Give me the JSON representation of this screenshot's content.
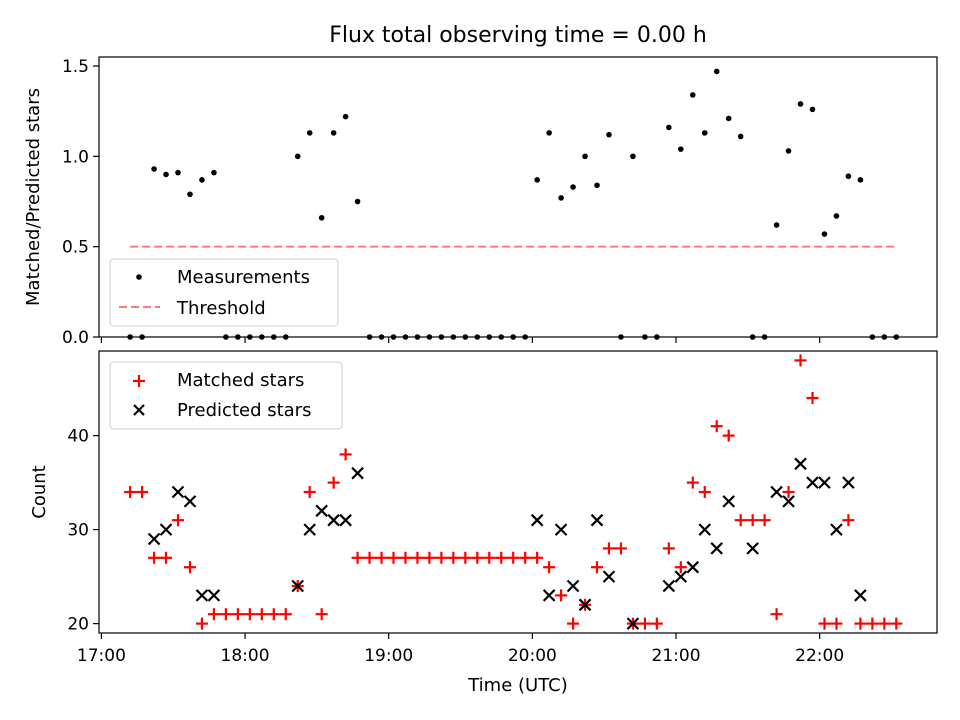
{
  "figure": {
    "title": "Flux total observing time = 0.00 h"
  },
  "chart_data": [
    {
      "type": "scatter",
      "panel": "top",
      "title": "Flux total observing time = 0.00 h",
      "ylabel": "Matched/Predicted stars",
      "xlim": [
        "16:59",
        "22:49"
      ],
      "ylim": [
        0,
        1.55
      ],
      "yticks": [
        0.0,
        0.5,
        1.0,
        1.5
      ],
      "ytick_labels": [
        "0.0",
        "0.5",
        "1.0",
        "1.5"
      ],
      "grid": false,
      "legend": "lower-left",
      "series": [
        {
          "name": "Measurements",
          "marker": "dot",
          "color": "#000000",
          "x": [
            "17:12",
            "17:17",
            "17:22",
            "17:27",
            "17:32",
            "17:37",
            "17:42",
            "17:47",
            "17:52",
            "17:57",
            "18:02",
            "18:07",
            "18:12",
            "18:17",
            "18:22",
            "18:27",
            "18:32",
            "18:37",
            "18:42",
            "18:47",
            "18:52",
            "18:57",
            "19:02",
            "19:07",
            "19:12",
            "19:17",
            "19:22",
            "19:27",
            "19:32",
            "19:37",
            "19:42",
            "19:47",
            "19:52",
            "19:57",
            "20:02",
            "20:07",
            "20:12",
            "20:17",
            "20:22",
            "20:27",
            "20:32",
            "20:37",
            "20:42",
            "20:47",
            "20:52",
            "20:57",
            "21:02",
            "21:07",
            "21:12",
            "21:17",
            "21:22",
            "21:27",
            "21:32",
            "21:37",
            "21:42",
            "21:47",
            "21:52",
            "21:57",
            "22:02",
            "22:07",
            "22:12",
            "22:17",
            "22:22",
            "22:27",
            "22:32"
          ],
          "y": [
            0,
            0,
            0.93,
            0.9,
            0.91,
            0.79,
            0.87,
            0.91,
            0,
            0,
            0,
            0,
            0,
            0,
            1.0,
            1.13,
            0.66,
            1.13,
            1.22,
            0.75,
            0,
            0,
            0,
            0,
            0,
            0,
            0,
            0,
            0,
            0,
            0,
            0,
            0,
            0,
            0.87,
            1.13,
            0.77,
            0.83,
            1.0,
            0.84,
            1.12,
            0,
            1.0,
            0,
            0,
            1.16,
            1.04,
            1.34,
            1.13,
            1.47,
            1.21,
            1.11,
            0,
            0,
            0.62,
            1.03,
            1.29,
            1.26,
            0.57,
            0.67,
            0.89,
            0.87,
            0,
            0,
            0
          ]
        },
        {
          "name": "Threshold",
          "style": "dashed",
          "color": "#ff7b7b",
          "x": [
            "17:12",
            "22:32"
          ],
          "y": [
            0.5,
            0.5
          ]
        }
      ]
    },
    {
      "type": "scatter",
      "panel": "bottom",
      "xlabel": "Time (UTC)",
      "ylabel": "Count",
      "xlim": [
        "16:59",
        "22:49"
      ],
      "ylim": [
        19,
        49
      ],
      "xticks": [
        "17:00",
        "18:00",
        "19:00",
        "20:00",
        "21:00",
        "22:00"
      ],
      "xtick_labels": [
        "17:00",
        "18:00",
        "19:00",
        "20:00",
        "21:00",
        "22:00"
      ],
      "yticks": [
        20,
        30,
        40
      ],
      "ytick_labels": [
        "20",
        "30",
        "40"
      ],
      "grid": false,
      "legend": "upper-left",
      "series": [
        {
          "name": "Matched stars",
          "marker": "plus",
          "color": "#ff0000",
          "x": [
            "17:12",
            "17:17",
            "17:22",
            "17:27",
            "17:32",
            "17:37",
            "17:42",
            "17:47",
            "17:52",
            "17:57",
            "18:02",
            "18:07",
            "18:12",
            "18:17",
            "18:22",
            "18:27",
            "18:32",
            "18:37",
            "18:42",
            "18:47",
            "18:52",
            "18:57",
            "19:02",
            "19:07",
            "19:12",
            "19:17",
            "19:22",
            "19:27",
            "19:32",
            "19:37",
            "19:42",
            "19:47",
            "19:52",
            "19:57",
            "20:02",
            "20:07",
            "20:12",
            "20:17",
            "20:22",
            "20:27",
            "20:32",
            "20:37",
            "20:42",
            "20:47",
            "20:52",
            "20:57",
            "21:02",
            "21:07",
            "21:12",
            "21:17",
            "21:22",
            "21:27",
            "21:32",
            "21:37",
            "21:42",
            "21:47",
            "21:52",
            "21:57",
            "22:02",
            "22:07",
            "22:12",
            "22:17",
            "22:22",
            "22:27",
            "22:32"
          ],
          "y": [
            34,
            34,
            27,
            27,
            31,
            26,
            20,
            21,
            21,
            21,
            21,
            21,
            21,
            21,
            24,
            34,
            21,
            35,
            38,
            27,
            27,
            27,
            27,
            27,
            27,
            27,
            27,
            27,
            27,
            27,
            27,
            27,
            27,
            27,
            27,
            26,
            23,
            20,
            22,
            26,
            28,
            28,
            20,
            20,
            20,
            28,
            26,
            35,
            34,
            41,
            40,
            31,
            31,
            31,
            21,
            34,
            48,
            44,
            20,
            20,
            31,
            20,
            20,
            20,
            20
          ]
        },
        {
          "name": "Predicted stars",
          "marker": "x",
          "color": "#000000",
          "x": [
            "17:22",
            "17:27",
            "17:32",
            "17:37",
            "17:42",
            "17:47",
            "18:22",
            "18:27",
            "18:32",
            "18:37",
            "18:42",
            "18:47",
            "20:02",
            "20:07",
            "20:12",
            "20:17",
            "20:22",
            "20:27",
            "20:32",
            "20:42",
            "20:57",
            "21:02",
            "21:07",
            "21:12",
            "21:17",
            "21:22",
            "21:32",
            "21:42",
            "21:47",
            "21:52",
            "21:57",
            "22:02",
            "22:07",
            "22:12",
            "22:17"
          ],
          "y": [
            29,
            30,
            34,
            33,
            23,
            23,
            24,
            30,
            32,
            31,
            31,
            36,
            31,
            23,
            30,
            24,
            22,
            31,
            25,
            20,
            24,
            25,
            26,
            30,
            28,
            33,
            28,
            34,
            33,
            37,
            35,
            35,
            30,
            35,
            23
          ]
        }
      ]
    }
  ]
}
